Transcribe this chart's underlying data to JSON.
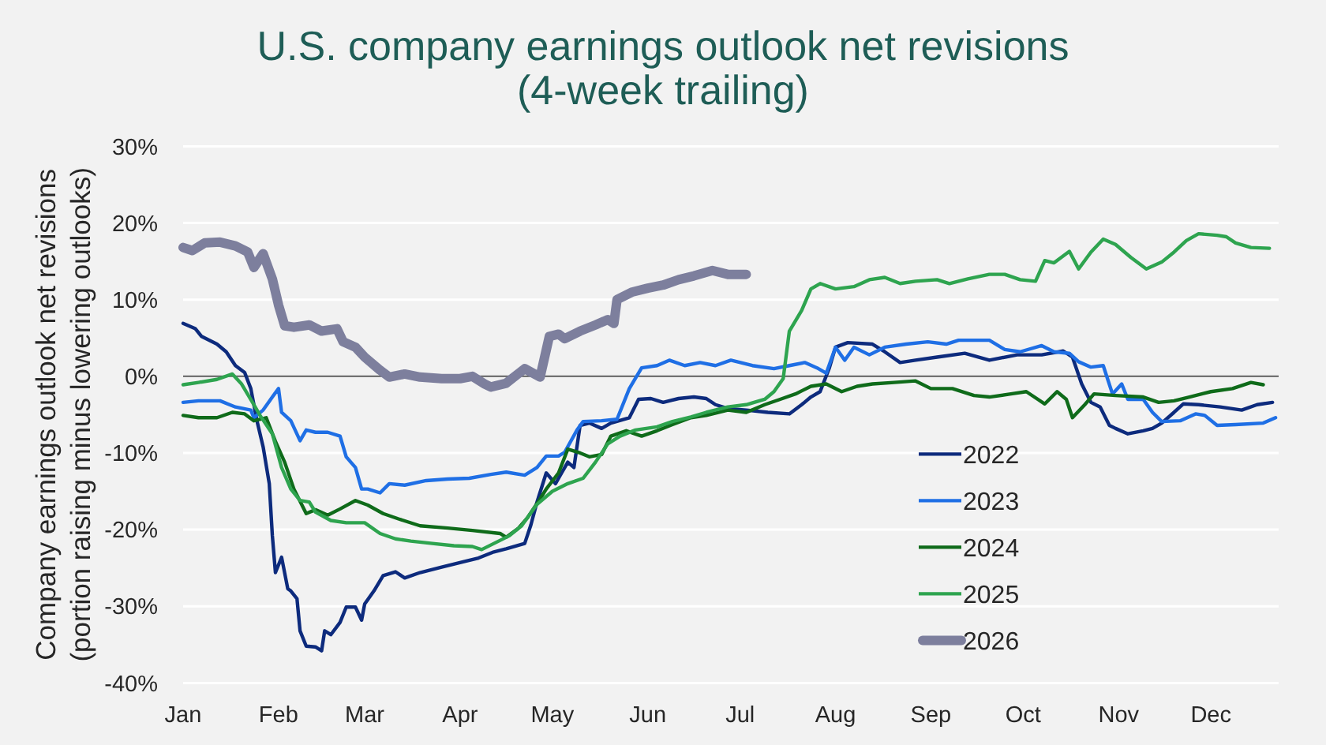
{
  "chart_data": {
    "type": "line",
    "title": "U.S. company earnings outlook net revisions\n(4-week trailing)",
    "ylabel": "Company earnings outlook net revisions\n(portion raising minus lowering outlooks)",
    "xlim": [
      "--01-01",
      "--12-23"
    ],
    "xticks": [
      {
        "value": "--01-01",
        "label": "Jan"
      },
      {
        "value": "--02-01",
        "label": "Feb"
      },
      {
        "value": "--03-01",
        "label": "Mar"
      },
      {
        "value": "--04-01",
        "label": "Apr"
      },
      {
        "value": "--05-01",
        "label": "May"
      },
      {
        "value": "--06-01",
        "label": "Jun"
      },
      {
        "value": "--07-01",
        "label": "Jul"
      },
      {
        "value": "--08-01",
        "label": "Aug"
      },
      {
        "value": "--09-01",
        "label": "Sep"
      },
      {
        "value": "--10-01",
        "label": "Oct"
      },
      {
        "value": "--11-01",
        "label": "Nov"
      },
      {
        "value": "--12-01",
        "label": "Dec"
      }
    ],
    "ylim": [
      -40,
      30
    ],
    "yticks": [
      {
        "value": -40,
        "label": "-40%"
      },
      {
        "value": -30,
        "label": "-30%"
      },
      {
        "value": -20,
        "label": "-20%"
      },
      {
        "value": -10,
        "label": "-10%"
      },
      {
        "value": 0,
        "label": "0%"
      },
      {
        "value": 10,
        "label": "10%"
      },
      {
        "value": 20,
        "label": "20%"
      },
      {
        "value": 30,
        "label": "30%"
      }
    ],
    "grid": "y",
    "legend": "bottom right",
    "ref_lines": [
      {
        "axis": "y",
        "value": 0,
        "color": "#5a5a5a"
      }
    ],
    "series": [
      {
        "name": "2022",
        "color": "#0d2b7d",
        "x": [
          "--01-01",
          "--01-05",
          "--01-07",
          "--01-12",
          "--01-15",
          "--01-18",
          "--01-21",
          "--01-23",
          "--01-25",
          "--01-27",
          "--01-29",
          "--01-30",
          "--01-31",
          "--02-02",
          "--02-04",
          "--02-05",
          "--02-07",
          "--02-08",
          "--02-10",
          "--02-13",
          "--02-15",
          "--02-16",
          "--02-18",
          "--02-21",
          "--02-23",
          "--02-26",
          "--02-28",
          "--03-01",
          "--03-04",
          "--03-07",
          "--03-11",
          "--03-14",
          "--03-19",
          "--03-26",
          "--04-02",
          "--04-07",
          "--04-12",
          "--04-16",
          "--04-22",
          "--04-24",
          "--04-26",
          "--04-29",
          "--05-02",
          "--05-04",
          "--05-06",
          "--05-08",
          "--05-10",
          "--05-13",
          "--05-17",
          "--05-20",
          "--05-26",
          "--05-29",
          "--06-02",
          "--06-06",
          "--06-11",
          "--06-16",
          "--06-20",
          "--06-23",
          "--06-27",
          "--07-03",
          "--07-10",
          "--07-17",
          "--07-21",
          "--07-24",
          "--07-27",
          "--07-30",
          "--08-01",
          "--08-05",
          "--08-13",
          "--08-17",
          "--08-22",
          "--08-27",
          "--09-03",
          "--09-12",
          "--09-20",
          "--09-29",
          "--10-07",
          "--10-14",
          "--10-17",
          "--10-20",
          "--10-23",
          "--10-26",
          "--10-29",
          "--10-31",
          "--11-04",
          "--11-09",
          "--11-12",
          "--11-15",
          "--11-19",
          "--11-22",
          "--11-27",
          "--12-04",
          "--12-11",
          "--12-16",
          "--12-21"
        ],
        "values": [
          6.9,
          6.2,
          5.2,
          4.2,
          3.2,
          1.4,
          0.5,
          -1.6,
          -5.8,
          -9.2,
          -14.0,
          -20.8,
          -25.6,
          -23.6,
          -27.7,
          -28.0,
          -29.0,
          -33.2,
          -35.2,
          -35.3,
          -35.8,
          -33.2,
          -33.7,
          -32.1,
          -30.1,
          -30.1,
          -31.8,
          -29.7,
          -28.0,
          -26.0,
          -25.5,
          -26.3,
          -25.6,
          -24.9,
          -24.2,
          -23.7,
          -22.9,
          -22.5,
          -21.8,
          -19.4,
          -16.4,
          -12.6,
          -14.0,
          -12.6,
          -11.2,
          -11.9,
          -6.4,
          -6.1,
          -6.8,
          -6.1,
          -5.4,
          -3.0,
          -2.9,
          -3.4,
          -2.9,
          -2.7,
          -2.9,
          -3.7,
          -4.2,
          -4.4,
          -4.7,
          -4.9,
          -3.7,
          -2.7,
          -2.0,
          1.1,
          3.8,
          4.4,
          4.2,
          3.2,
          1.8,
          2.1,
          2.5,
          3.0,
          2.1,
          2.8,
          2.8,
          3.3,
          2.5,
          -1.0,
          -3.4,
          -4.0,
          -6.4,
          -6.8,
          -7.5,
          -7.1,
          -6.8,
          -6.1,
          -4.7,
          -3.6,
          -3.7,
          -4.0,
          -4.4,
          -3.7,
          -3.4
        ]
      },
      {
        "name": "2023",
        "color": "#1f6fe5",
        "x": [
          "--01-01",
          "--01-06",
          "--01-13",
          "--01-18",
          "--01-23",
          "--01-24",
          "--01-27",
          "--01-30",
          "--02-01",
          "--02-02",
          "--02-05",
          "--02-08",
          "--02-10",
          "--02-13",
          "--02-17",
          "--02-21",
          "--02-23",
          "--02-26",
          "--02-28",
          "--03-02",
          "--03-06",
          "--03-09",
          "--03-14",
          "--03-21",
          "--03-28",
          "--04-04",
          "--04-11",
          "--04-16",
          "--04-22",
          "--04-26",
          "--04-29",
          "--05-03",
          "--05-05",
          "--05-09",
          "--05-11",
          "--05-17",
          "--05-22",
          "--05-26",
          "--05-30",
          "--06-04",
          "--06-08",
          "--06-13",
          "--06-18",
          "--06-23",
          "--06-28",
          "--07-05",
          "--07-12",
          "--07-17",
          "--07-22",
          "--07-26",
          "--07-29",
          "--08-01",
          "--08-04",
          "--08-07",
          "--08-12",
          "--08-17",
          "--08-24",
          "--08-31",
          "--09-06",
          "--09-10",
          "--09-20",
          "--09-25",
          "--09-30",
          "--10-07",
          "--10-11",
          "--10-16",
          "--10-19",
          "--10-23",
          "--10-27",
          "--10-30",
          "--11-02",
          "--11-04",
          "--11-09",
          "--11-12",
          "--11-15",
          "--11-21",
          "--11-26",
          "--11-29",
          "--12-03",
          "--12-09",
          "--12-18",
          "--12-22"
        ],
        "values": [
          -3.4,
          -3.2,
          -3.2,
          -4.0,
          -4.4,
          -5.4,
          -4.4,
          -2.7,
          -1.6,
          -4.7,
          -5.8,
          -8.4,
          -7.0,
          -7.3,
          -7.3,
          -7.8,
          -10.5,
          -11.9,
          -14.7,
          -14.7,
          -15.2,
          -14.0,
          -14.2,
          -13.6,
          -13.4,
          -13.3,
          -12.8,
          -12.5,
          -12.9,
          -11.9,
          -10.4,
          -10.4,
          -9.9,
          -7.0,
          -5.9,
          -5.8,
          -5.6,
          -1.6,
          1.1,
          1.4,
          2.1,
          1.4,
          1.8,
          1.4,
          2.1,
          1.4,
          1.0,
          1.4,
          1.8,
          1.1,
          0.4,
          3.8,
          2.1,
          3.8,
          2.8,
          3.8,
          4.2,
          4.5,
          4.2,
          4.7,
          4.7,
          3.5,
          3.2,
          4.0,
          3.2,
          3.0,
          1.9,
          1.2,
          1.4,
          -2.3,
          -1.0,
          -3.0,
          -3.0,
          -4.7,
          -5.9,
          -5.8,
          -4.9,
          -5.1,
          -6.4,
          -6.3,
          -6.1,
          -5.4
        ]
      },
      {
        "name": "2024",
        "color": "#0f6b1a",
        "x": [
          "--01-01",
          "--01-06",
          "--01-12",
          "--01-17",
          "--01-21",
          "--01-24",
          "--01-28",
          "--01-31",
          "--02-03",
          "--02-06",
          "--02-10",
          "--02-13",
          "--02-17",
          "--02-21",
          "--02-26",
          "--03-02",
          "--03-07",
          "--03-12",
          "--03-19",
          "--03-28",
          "--04-05",
          "--04-14",
          "--04-16",
          "--04-20",
          "--04-23",
          "--04-27",
          "--04-29",
          "--05-03",
          "--05-06",
          "--05-10",
          "--05-13",
          "--05-17",
          "--05-20",
          "--05-25",
          "--05-30",
          "--06-04",
          "--06-09",
          "--06-15",
          "--06-20",
          "--06-27",
          "--07-03",
          "--07-09",
          "--07-14",
          "--07-19",
          "--07-24",
          "--07-29",
          "--08-03",
          "--08-08",
          "--08-13",
          "--08-20",
          "--08-27",
          "--09-01",
          "--09-08",
          "--09-15",
          "--09-20",
          "--09-27",
          "--10-02",
          "--10-08",
          "--10-12",
          "--10-15",
          "--10-17",
          "--10-21",
          "--10-24",
          "--10-31",
          "--11-09",
          "--11-14",
          "--11-19",
          "--11-24",
          "--12-01",
          "--12-08",
          "--12-14",
          "--12-18"
        ],
        "values": [
          -5.1,
          -5.4,
          -5.4,
          -4.7,
          -4.9,
          -5.8,
          -5.4,
          -8.5,
          -11.2,
          -14.7,
          -17.9,
          -17.4,
          -18.1,
          -17.3,
          -16.2,
          -16.8,
          -17.9,
          -18.6,
          -19.5,
          -19.8,
          -20.1,
          -20.5,
          -21.0,
          -19.8,
          -18.4,
          -16.0,
          -14.7,
          -12.6,
          -9.5,
          -10.0,
          -10.5,
          -10.2,
          -7.8,
          -7.1,
          -7.8,
          -7.1,
          -6.3,
          -5.4,
          -5.1,
          -4.4,
          -4.7,
          -3.7,
          -3.0,
          -2.3,
          -1.3,
          -1.0,
          -2.0,
          -1.3,
          -1.0,
          -0.8,
          -0.6,
          -1.6,
          -1.6,
          -2.5,
          -2.7,
          -2.3,
          -2.0,
          -3.6,
          -2.0,
          -3.0,
          -5.4,
          -3.7,
          -2.3,
          -2.5,
          -2.7,
          -3.4,
          -3.2,
          -2.7,
          -2.0,
          -1.6,
          -0.8,
          -1.1
        ]
      },
      {
        "name": "2025",
        "color": "#2ea44f",
        "x": [
          "--01-01",
          "--01-06",
          "--01-12",
          "--01-17",
          "--01-20",
          "--01-24",
          "--01-26",
          "--01-30",
          "--02-02",
          "--02-05",
          "--02-08",
          "--02-11",
          "--02-13",
          "--02-18",
          "--02-23",
          "--03-01",
          "--03-06",
          "--03-11",
          "--03-16",
          "--03-23",
          "--03-30",
          "--04-05",
          "--04-08",
          "--04-12",
          "--04-17",
          "--04-21",
          "--04-26",
          "--05-01",
          "--05-06",
          "--05-11",
          "--05-15",
          "--05-19",
          "--05-23",
          "--05-28",
          "--06-04",
          "--06-09",
          "--06-15",
          "--06-20",
          "--06-27",
          "--07-03",
          "--07-09",
          "--07-12",
          "--07-15",
          "--07-17",
          "--07-21",
          "--07-24",
          "--07-27",
          "--08-01",
          "--08-07",
          "--08-12",
          "--08-17",
          "--08-22",
          "--08-27",
          "--09-03",
          "--09-07",
          "--09-13",
          "--09-20",
          "--09-25",
          "--09-30",
          "--10-05",
          "--10-08",
          "--10-11",
          "--10-16",
          "--10-19",
          "--10-23",
          "--10-27",
          "--10-31",
          "--11-05",
          "--11-10",
          "--11-15",
          "--11-19",
          "--11-23",
          "--11-27",
          "--12-03",
          "--12-06",
          "--12-09",
          "--12-14",
          "--12-20"
        ],
        "values": [
          -1.1,
          -0.8,
          -0.4,
          0.3,
          -1.0,
          -3.7,
          -5.1,
          -7.5,
          -11.9,
          -14.7,
          -16.2,
          -16.4,
          -17.7,
          -18.8,
          -19.1,
          -19.1,
          -20.5,
          -21.2,
          -21.5,
          -21.8,
          -22.1,
          -22.2,
          -22.6,
          -21.8,
          -20.8,
          -19.5,
          -16.7,
          -15.0,
          -14.0,
          -13.3,
          -11.2,
          -8.8,
          -7.8,
          -7.0,
          -6.6,
          -5.9,
          -5.3,
          -4.7,
          -4.0,
          -3.7,
          -3.0,
          -2.0,
          -0.3,
          5.9,
          8.6,
          11.4,
          12.1,
          11.4,
          11.7,
          12.6,
          12.9,
          12.1,
          12.4,
          12.6,
          12.1,
          12.7,
          13.3,
          13.3,
          12.6,
          12.4,
          15.1,
          14.8,
          16.3,
          14.0,
          16.2,
          17.9,
          17.2,
          15.5,
          14.0,
          14.9,
          16.2,
          17.7,
          18.6,
          18.4,
          18.2,
          17.4,
          16.8,
          16.7
        ]
      },
      {
        "name": "2026",
        "color": "#7d7f9d",
        "x": [
          "--01-01",
          "--01-04",
          "--01-08",
          "--01-13",
          "--01-18",
          "--01-22",
          "--01-24",
          "--01-27",
          "--01-30",
          "--02-01",
          "--02-03",
          "--02-06",
          "--02-11",
          "--02-15",
          "--02-20",
          "--02-22",
          "--02-26",
          "--03-01",
          "--03-06",
          "--03-09",
          "--03-14",
          "--03-19",
          "--03-26",
          "--04-01",
          "--04-05",
          "--04-09",
          "--04-11",
          "--04-16",
          "--04-22",
          "--04-27",
          "--04-30",
          "--05-03",
          "--05-05",
          "--05-10",
          "--05-15",
          "--05-19",
          "--05-21",
          "--05-22",
          "--05-27",
          "--06-01",
          "--06-06",
          "--06-11",
          "--06-16",
          "--06-22",
          "--06-27",
          "--07-03"
        ],
        "values": [
          16.8,
          16.4,
          17.4,
          17.5,
          17.0,
          16.2,
          14.2,
          16.0,
          12.7,
          9.3,
          6.6,
          6.4,
          6.7,
          5.9,
          6.2,
          4.5,
          3.8,
          2.5,
          0.8,
          -0.1,
          0.3,
          -0.1,
          -0.3,
          -0.3,
          0,
          -1.0,
          -1.4,
          -0.9,
          1.0,
          -0.1,
          5.2,
          5.5,
          4.9,
          5.9,
          6.7,
          7.4,
          6.9,
          10.0,
          11.0,
          11.5,
          11.9,
          12.6,
          13.1,
          13.8,
          13.3,
          13.3
        ]
      }
    ]
  }
}
